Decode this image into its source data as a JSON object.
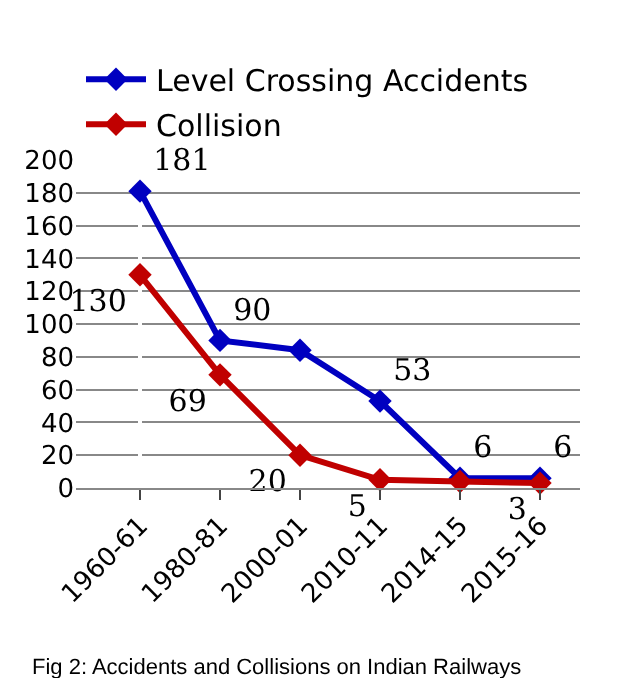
{
  "chart_data": {
    "type": "line",
    "categories": [
      "1960-61",
      "1980-81",
      "2000-01",
      "2010-11",
      "2014-15",
      "2015-16"
    ],
    "series": [
      {
        "name": "Level Crossing Accidents",
        "color": "#0000c0",
        "values": [
          181,
          90,
          84,
          53,
          6,
          6
        ],
        "value_labels": [
          "181",
          "90",
          null,
          "53",
          "6",
          "6"
        ]
      },
      {
        "name": "Collision",
        "color": "#c00000",
        "values": [
          130,
          69,
          20,
          5,
          4,
          3
        ],
        "value_labels": [
          "130",
          "69",
          "20",
          "5",
          null,
          "3"
        ]
      }
    ],
    "ylim": [
      0,
      200
    ],
    "yticks": [
      0,
      20,
      40,
      60,
      80,
      100,
      120,
      140,
      160,
      180,
      200
    ],
    "grid": "y",
    "legend": "top",
    "marker": "diamond",
    "annotations": [
      "Fig 2: Accidents and Collisions on Indian Railways"
    ]
  }
}
